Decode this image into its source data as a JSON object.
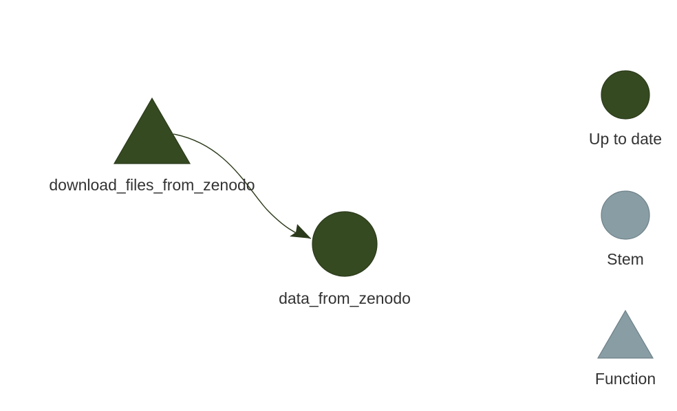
{
  "colors": {
    "up_to_date": "#354a21",
    "outline": "#2b3a1a",
    "grey": "#899da4",
    "grey_outline": "#6d8088",
    "text": "#333333",
    "edge": "#2b3a1a"
  },
  "graph": {
    "nodes": [
      {
        "id": "download_files_from_zenodo",
        "label": "download_files_from_zenodo",
        "shape": "triangle",
        "status": "Up to date",
        "type": "Function"
      },
      {
        "id": "data_from_zenodo",
        "label": "data_from_zenodo",
        "shape": "circle",
        "status": "Up to date",
        "type": "Stem"
      }
    ],
    "edges": [
      {
        "from": "download_files_from_zenodo",
        "to": "data_from_zenodo"
      }
    ]
  },
  "legend": {
    "items": [
      {
        "label": "Up to date",
        "shape": "circle",
        "color": "#354a21"
      },
      {
        "label": "Stem",
        "shape": "circle",
        "color": "#899da4"
      },
      {
        "label": "Function",
        "shape": "triangle",
        "color": "#899da4"
      }
    ]
  }
}
